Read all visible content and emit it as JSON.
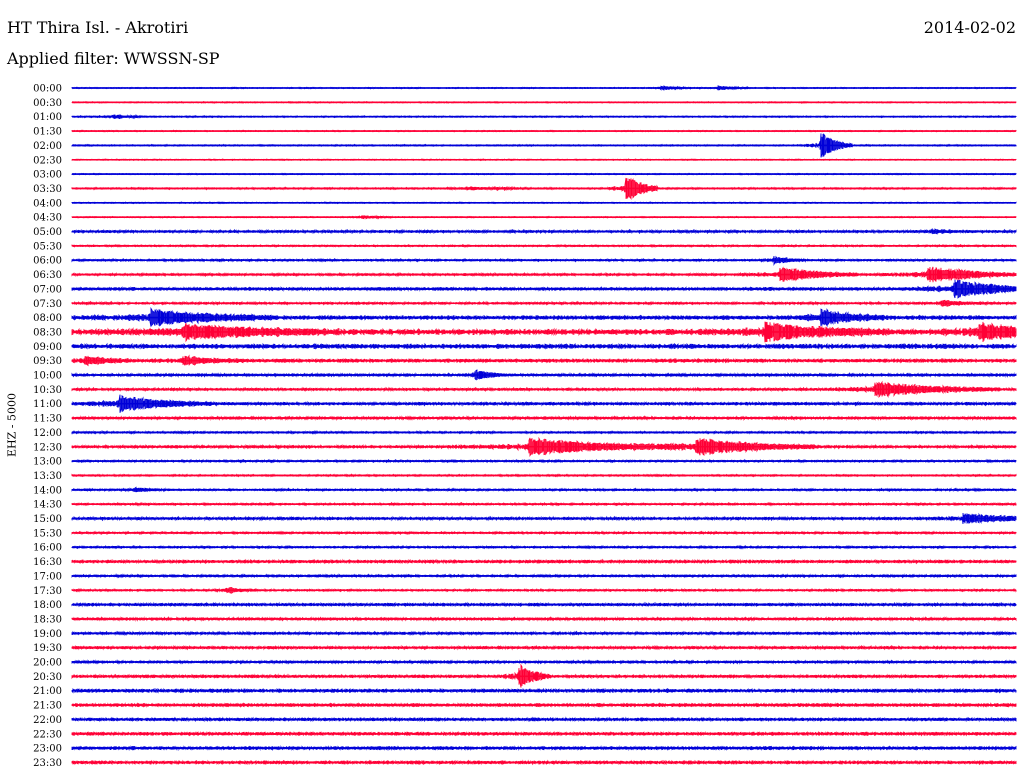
{
  "header": {
    "station": "HT Thira Isl. - Akrotiri",
    "date": "2014-02-02",
    "filter": "Applied filter: WWSSN-SP"
  },
  "channel_label": "EHZ - 5000",
  "colors": {
    "even": "#0000d8",
    "odd": "#ff0036"
  },
  "chart_data": {
    "type": "line",
    "description_units": "helicorder: one trace per 30 min, x = minutes within the 30-min window (0-30)",
    "xlim": [
      0,
      30
    ],
    "rows": [
      {
        "label": "00:00",
        "noise": 0.4,
        "events": [
          {
            "t": 18.7,
            "amp": 2,
            "dur": 1
          },
          {
            "t": 20.5,
            "amp": 2,
            "dur": 1
          }
        ]
      },
      {
        "label": "00:30",
        "noise": 0.4,
        "events": []
      },
      {
        "label": "01:00",
        "noise": 0.5,
        "events": [
          {
            "t": 1.3,
            "amp": 2,
            "dur": 1
          }
        ]
      },
      {
        "label": "01:30",
        "noise": 0.4,
        "events": []
      },
      {
        "label": "02:00",
        "noise": 0.5,
        "events": [
          {
            "t": 23.8,
            "amp": 13,
            "dur": 1
          }
        ]
      },
      {
        "label": "02:30",
        "noise": 0.4,
        "events": []
      },
      {
        "label": "03:00",
        "noise": 0.4,
        "events": []
      },
      {
        "label": "03:30",
        "noise": 0.6,
        "events": [
          {
            "t": 17.6,
            "amp": 16,
            "dur": 1
          },
          {
            "t": 12.5,
            "amp": 1.5,
            "dur": 2
          }
        ]
      },
      {
        "label": "04:00",
        "noise": 0.4,
        "events": []
      },
      {
        "label": "04:30",
        "noise": 0.4,
        "events": [
          {
            "t": 9.2,
            "amp": 1.5,
            "dur": 1
          }
        ]
      },
      {
        "label": "05:00",
        "noise": 0.9,
        "events": [
          {
            "t": 27.3,
            "amp": 2,
            "dur": 1.5
          }
        ]
      },
      {
        "label": "05:30",
        "noise": 0.6,
        "events": []
      },
      {
        "label": "06:00",
        "noise": 0.7,
        "events": [
          {
            "t": 22.3,
            "amp": 4,
            "dur": 1
          }
        ]
      },
      {
        "label": "06:30",
        "noise": 0.8,
        "events": [
          {
            "t": 22.5,
            "amp": 8,
            "dur": 2.5
          },
          {
            "t": 27.2,
            "amp": 9,
            "dur": 3
          }
        ]
      },
      {
        "label": "07:00",
        "noise": 1.2,
        "events": [
          {
            "t": 28.0,
            "amp": 9,
            "dur": 3
          }
        ]
      },
      {
        "label": "07:30",
        "noise": 0.8,
        "events": [
          {
            "t": 27.6,
            "amp": 3,
            "dur": 1.5
          }
        ]
      },
      {
        "label": "08:00",
        "noise": 1.6,
        "events": [
          {
            "t": 2.5,
            "amp": 8,
            "dur": 4
          },
          {
            "t": 23.8,
            "amp": 8,
            "dur": 2
          }
        ]
      },
      {
        "label": "08:30",
        "noise": 2.2,
        "events": [
          {
            "t": 3.5,
            "amp": 7,
            "dur": 5
          },
          {
            "t": 22.0,
            "amp": 9,
            "dur": 4
          },
          {
            "t": 28.8,
            "amp": 9,
            "dur": 3
          }
        ]
      },
      {
        "label": "09:00",
        "noise": 1.8,
        "events": []
      },
      {
        "label": "09:30",
        "noise": 1.4,
        "events": [
          {
            "t": 0.4,
            "amp": 4,
            "dur": 1.5
          },
          {
            "t": 3.5,
            "amp": 4,
            "dur": 2
          }
        ]
      },
      {
        "label": "10:00",
        "noise": 1.0,
        "events": [
          {
            "t": 12.8,
            "amp": 5,
            "dur": 1
          }
        ]
      },
      {
        "label": "10:30",
        "noise": 0.9,
        "events": [
          {
            "t": 25.5,
            "amp": 8,
            "dur": 4
          }
        ]
      },
      {
        "label": "11:00",
        "noise": 1.1,
        "events": [
          {
            "t": 1.5,
            "amp": 8,
            "dur": 3
          }
        ]
      },
      {
        "label": "11:30",
        "noise": 1.0,
        "events": []
      },
      {
        "label": "12:00",
        "noise": 0.7,
        "events": []
      },
      {
        "label": "12:30",
        "noise": 1.0,
        "events": [
          {
            "t": 14.5,
            "amp": 9,
            "dur": 5
          },
          {
            "t": 19.8,
            "amp": 9,
            "dur": 4
          }
        ]
      },
      {
        "label": "13:00",
        "noise": 0.7,
        "events": []
      },
      {
        "label": "13:30",
        "noise": 0.6,
        "events": []
      },
      {
        "label": "14:00",
        "noise": 0.7,
        "events": [
          {
            "t": 2.0,
            "amp": 2,
            "dur": 1
          }
        ]
      },
      {
        "label": "14:30",
        "noise": 0.7,
        "events": []
      },
      {
        "label": "15:00",
        "noise": 1.0,
        "events": [
          {
            "t": 28.3,
            "amp": 5,
            "dur": 3
          }
        ]
      },
      {
        "label": "15:30",
        "noise": 0.7,
        "events": []
      },
      {
        "label": "16:00",
        "noise": 0.7,
        "events": []
      },
      {
        "label": "16:30",
        "noise": 1.2,
        "events": []
      },
      {
        "label": "17:00",
        "noise": 0.8,
        "events": []
      },
      {
        "label": "17:30",
        "noise": 0.7,
        "events": [
          {
            "t": 4.9,
            "amp": 3,
            "dur": 1
          }
        ]
      },
      {
        "label": "18:00",
        "noise": 1.1,
        "events": []
      },
      {
        "label": "18:30",
        "noise": 1.0,
        "events": []
      },
      {
        "label": "19:00",
        "noise": 0.9,
        "events": []
      },
      {
        "label": "19:30",
        "noise": 1.0,
        "events": []
      },
      {
        "label": "20:00",
        "noise": 0.9,
        "events": []
      },
      {
        "label": "20:30",
        "noise": 1.1,
        "events": [
          {
            "t": 14.2,
            "amp": 12,
            "dur": 1
          }
        ]
      },
      {
        "label": "21:00",
        "noise": 1.4,
        "events": []
      },
      {
        "label": "21:30",
        "noise": 1.3,
        "events": []
      },
      {
        "label": "22:00",
        "noise": 1.2,
        "events": []
      },
      {
        "label": "22:30",
        "noise": 1.3,
        "events": []
      },
      {
        "label": "23:00",
        "noise": 1.3,
        "events": []
      },
      {
        "label": "23:30",
        "noise": 1.3,
        "events": []
      }
    ]
  }
}
